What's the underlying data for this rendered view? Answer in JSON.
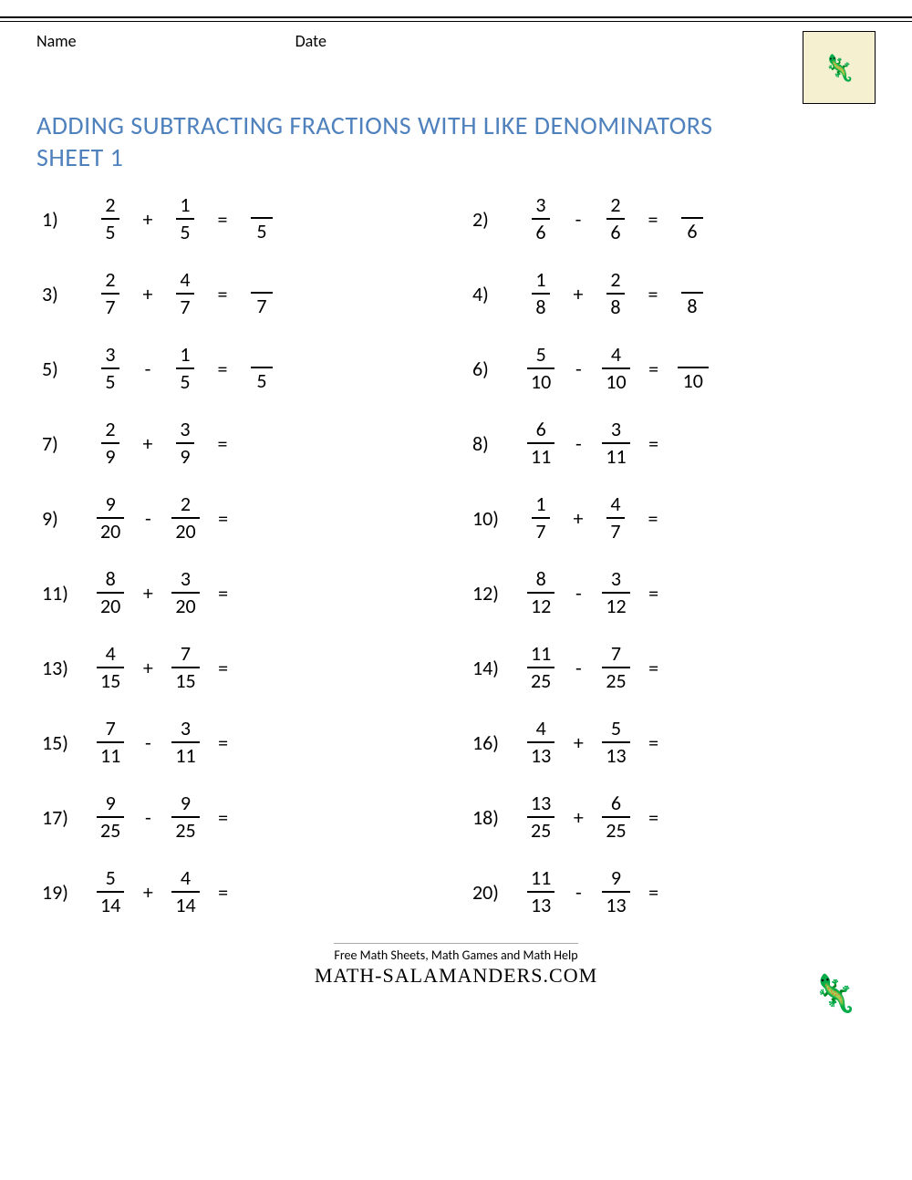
{
  "header": {
    "name_label": "Name",
    "date_label": "Date"
  },
  "title": "ADDING SUBTRACTING FRACTIONS WITH LIKE DENOMINATORS SHEET 1",
  "problems": [
    {
      "n": "1)",
      "a_num": "2",
      "a_den": "5",
      "op": "+",
      "b_num": "1",
      "b_den": "5",
      "ans_den": "5"
    },
    {
      "n": "2)",
      "a_num": "3",
      "a_den": "6",
      "op": "-",
      "b_num": "2",
      "b_den": "6",
      "ans_den": "6"
    },
    {
      "n": "3)",
      "a_num": "2",
      "a_den": "7",
      "op": "+",
      "b_num": "4",
      "b_den": "7",
      "ans_den": "7"
    },
    {
      "n": "4)",
      "a_num": "1",
      "a_den": "8",
      "op": "+",
      "b_num": "2",
      "b_den": "8",
      "ans_den": "8"
    },
    {
      "n": "5)",
      "a_num": "3",
      "a_den": "5",
      "op": "-",
      "b_num": "1",
      "b_den": "5",
      "ans_den": "5"
    },
    {
      "n": "6)",
      "a_num": "5",
      "a_den": "10",
      "op": "-",
      "b_num": "4",
      "b_den": "10",
      "ans_den": "10"
    },
    {
      "n": "7)",
      "a_num": "2",
      "a_den": "9",
      "op": "+",
      "b_num": "3",
      "b_den": "9",
      "ans_den": ""
    },
    {
      "n": "8)",
      "a_num": "6",
      "a_den": "11",
      "op": "-",
      "b_num": "3",
      "b_den": "11",
      "ans_den": ""
    },
    {
      "n": "9)",
      "a_num": "9",
      "a_den": "20",
      "op": "-",
      "b_num": "2",
      "b_den": "20",
      "ans_den": ""
    },
    {
      "n": "10)",
      "a_num": "1",
      "a_den": "7",
      "op": "+",
      "b_num": "4",
      "b_den": "7",
      "ans_den": ""
    },
    {
      "n": "11)",
      "a_num": "8",
      "a_den": "20",
      "op": "+",
      "b_num": "3",
      "b_den": "20",
      "ans_den": ""
    },
    {
      "n": "12)",
      "a_num": "8",
      "a_den": "12",
      "op": "-",
      "b_num": "3",
      "b_den": "12",
      "ans_den": ""
    },
    {
      "n": "13)",
      "a_num": "4",
      "a_den": "15",
      "op": "+",
      "b_num": "7",
      "b_den": "15",
      "ans_den": ""
    },
    {
      "n": "14)",
      "a_num": "11",
      "a_den": "25",
      "op": "-",
      "b_num": "7",
      "b_den": "25",
      "ans_den": ""
    },
    {
      "n": "15)",
      "a_num": "7",
      "a_den": "11",
      "op": "-",
      "b_num": "3",
      "b_den": "11",
      "ans_den": ""
    },
    {
      "n": "16)",
      "a_num": "4",
      "a_den": "13",
      "op": "+",
      "b_num": "5",
      "b_den": "13",
      "ans_den": ""
    },
    {
      "n": "17)",
      "a_num": "9",
      "a_den": "25",
      "op": "-",
      "b_num": "9",
      "b_den": "25",
      "ans_den": ""
    },
    {
      "n": "18)",
      "a_num": "13",
      "a_den": "25",
      "op": "+",
      "b_num": "6",
      "b_den": "25",
      "ans_den": ""
    },
    {
      "n": "19)",
      "a_num": "5",
      "a_den": "14",
      "op": "+",
      "b_num": "4",
      "b_den": "14",
      "ans_den": ""
    },
    {
      "n": "20)",
      "a_num": "11",
      "a_den": "13",
      "op": "-",
      "b_num": "9",
      "b_den": "13",
      "ans_den": ""
    }
  ],
  "footer": {
    "tagline": "Free Math Sheets, Math Games and Math Help",
    "brand": "MATH-SALAMANDERS.COM"
  },
  "colors": {
    "title": "#4f81bd",
    "text": "#000000",
    "background": "#ffffff"
  }
}
